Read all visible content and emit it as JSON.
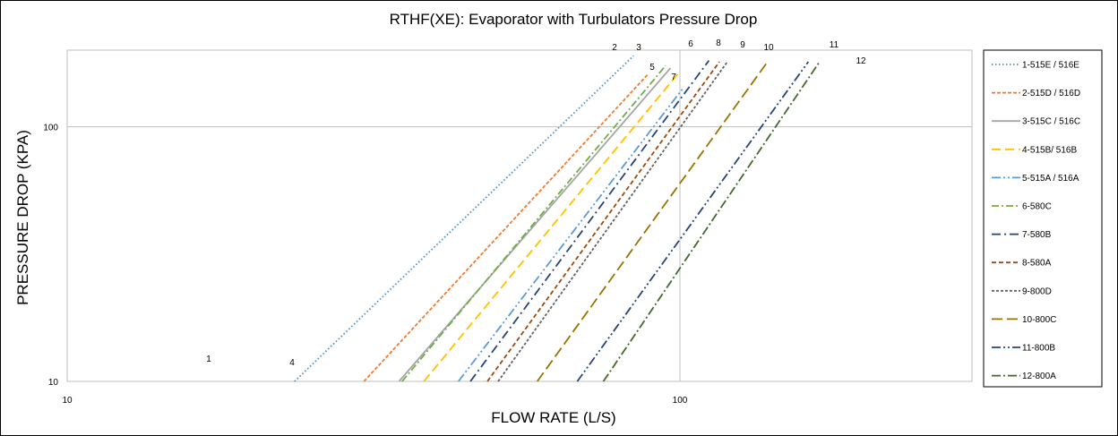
{
  "chart_data": {
    "type": "line",
    "title": "RTHF(XE): Evaporator with Turbulators Pressure Drop",
    "xlabel": "FLOW RATE (L/S)",
    "ylabel": "PRESSURE DROP (KPA)",
    "x_scale": "log",
    "y_scale": "log",
    "xlim": [
      10,
      1000
    ],
    "ylim": [
      10,
      200
    ],
    "x_ticks": [
      "10",
      "100"
    ],
    "y_ticks": [
      "10",
      "100"
    ],
    "grid": true,
    "legend_position": "right",
    "series": [
      {
        "name": "1-515E / 516E",
        "label": "1",
        "color": "#4a90c8",
        "dash": "1.5,2.5",
        "points": [
          [
            23.5,
            10
          ],
          [
            84,
            190
          ]
        ]
      },
      {
        "name": "2-515D / 516D",
        "label": "2",
        "color": "#ed7d31",
        "dash": "4,2",
        "points": [
          [
            30.5,
            10
          ],
          [
            88.5,
            160
          ]
        ]
      },
      {
        "name": "3-515C / 516C",
        "label": "3",
        "color": "#a5a5a5",
        "dash": "",
        "points": [
          [
            34.8,
            10
          ],
          [
            96.5,
            170
          ]
        ]
      },
      {
        "name": "4-515B/ 516B",
        "label": "4",
        "color": "#ffc000",
        "dash": "10,5",
        "points": [
          [
            38.2,
            10
          ],
          [
            100,
            165
          ]
        ]
      },
      {
        "name": "5-515A / 516A",
        "label": "5",
        "color": "#5b9bd5",
        "dash": "10,3,2,3,2,3",
        "points": [
          [
            43.5,
            10
          ],
          [
            101,
            141
          ]
        ]
      },
      {
        "name": "6-580C",
        "label": "6",
        "color": "#70ad47",
        "dash": "8,3,2,3",
        "points": [
          [
            35.2,
            10
          ],
          [
            94.8,
            174
          ]
        ]
      },
      {
        "name": "7-580B",
        "label": "7",
        "color": "#264478",
        "dash": "10,4,2,4",
        "points": [
          [
            45.5,
            10
          ],
          [
            111.5,
            182
          ]
        ]
      },
      {
        "name": "8-580A",
        "label": "8",
        "color": "#9e480e",
        "dash": "5,3",
        "points": [
          [
            48.5,
            10
          ],
          [
            116,
            180
          ]
        ]
      },
      {
        "name": "9-800D",
        "label": "9",
        "color": "#636363",
        "dash": "3,2",
        "points": [
          [
            50.5,
            10
          ],
          [
            119.5,
            180
          ]
        ]
      },
      {
        "name": "10-800C",
        "label": "10",
        "color": "#997300",
        "dash": "12,5",
        "points": [
          [
            58.5,
            10
          ],
          [
            139,
            180
          ]
        ]
      },
      {
        "name": "11-800B",
        "label": "11",
        "color": "#264478",
        "dash": "10,3,2,3,2,3",
        "points": [
          [
            68,
            10
          ],
          [
            162,
            180
          ]
        ]
      },
      {
        "name": "12-800A",
        "label": "12",
        "color": "#43682b",
        "dash": "10,3,2,3",
        "points": [
          [
            75,
            10
          ],
          [
            169,
            180
          ]
        ]
      }
    ]
  }
}
